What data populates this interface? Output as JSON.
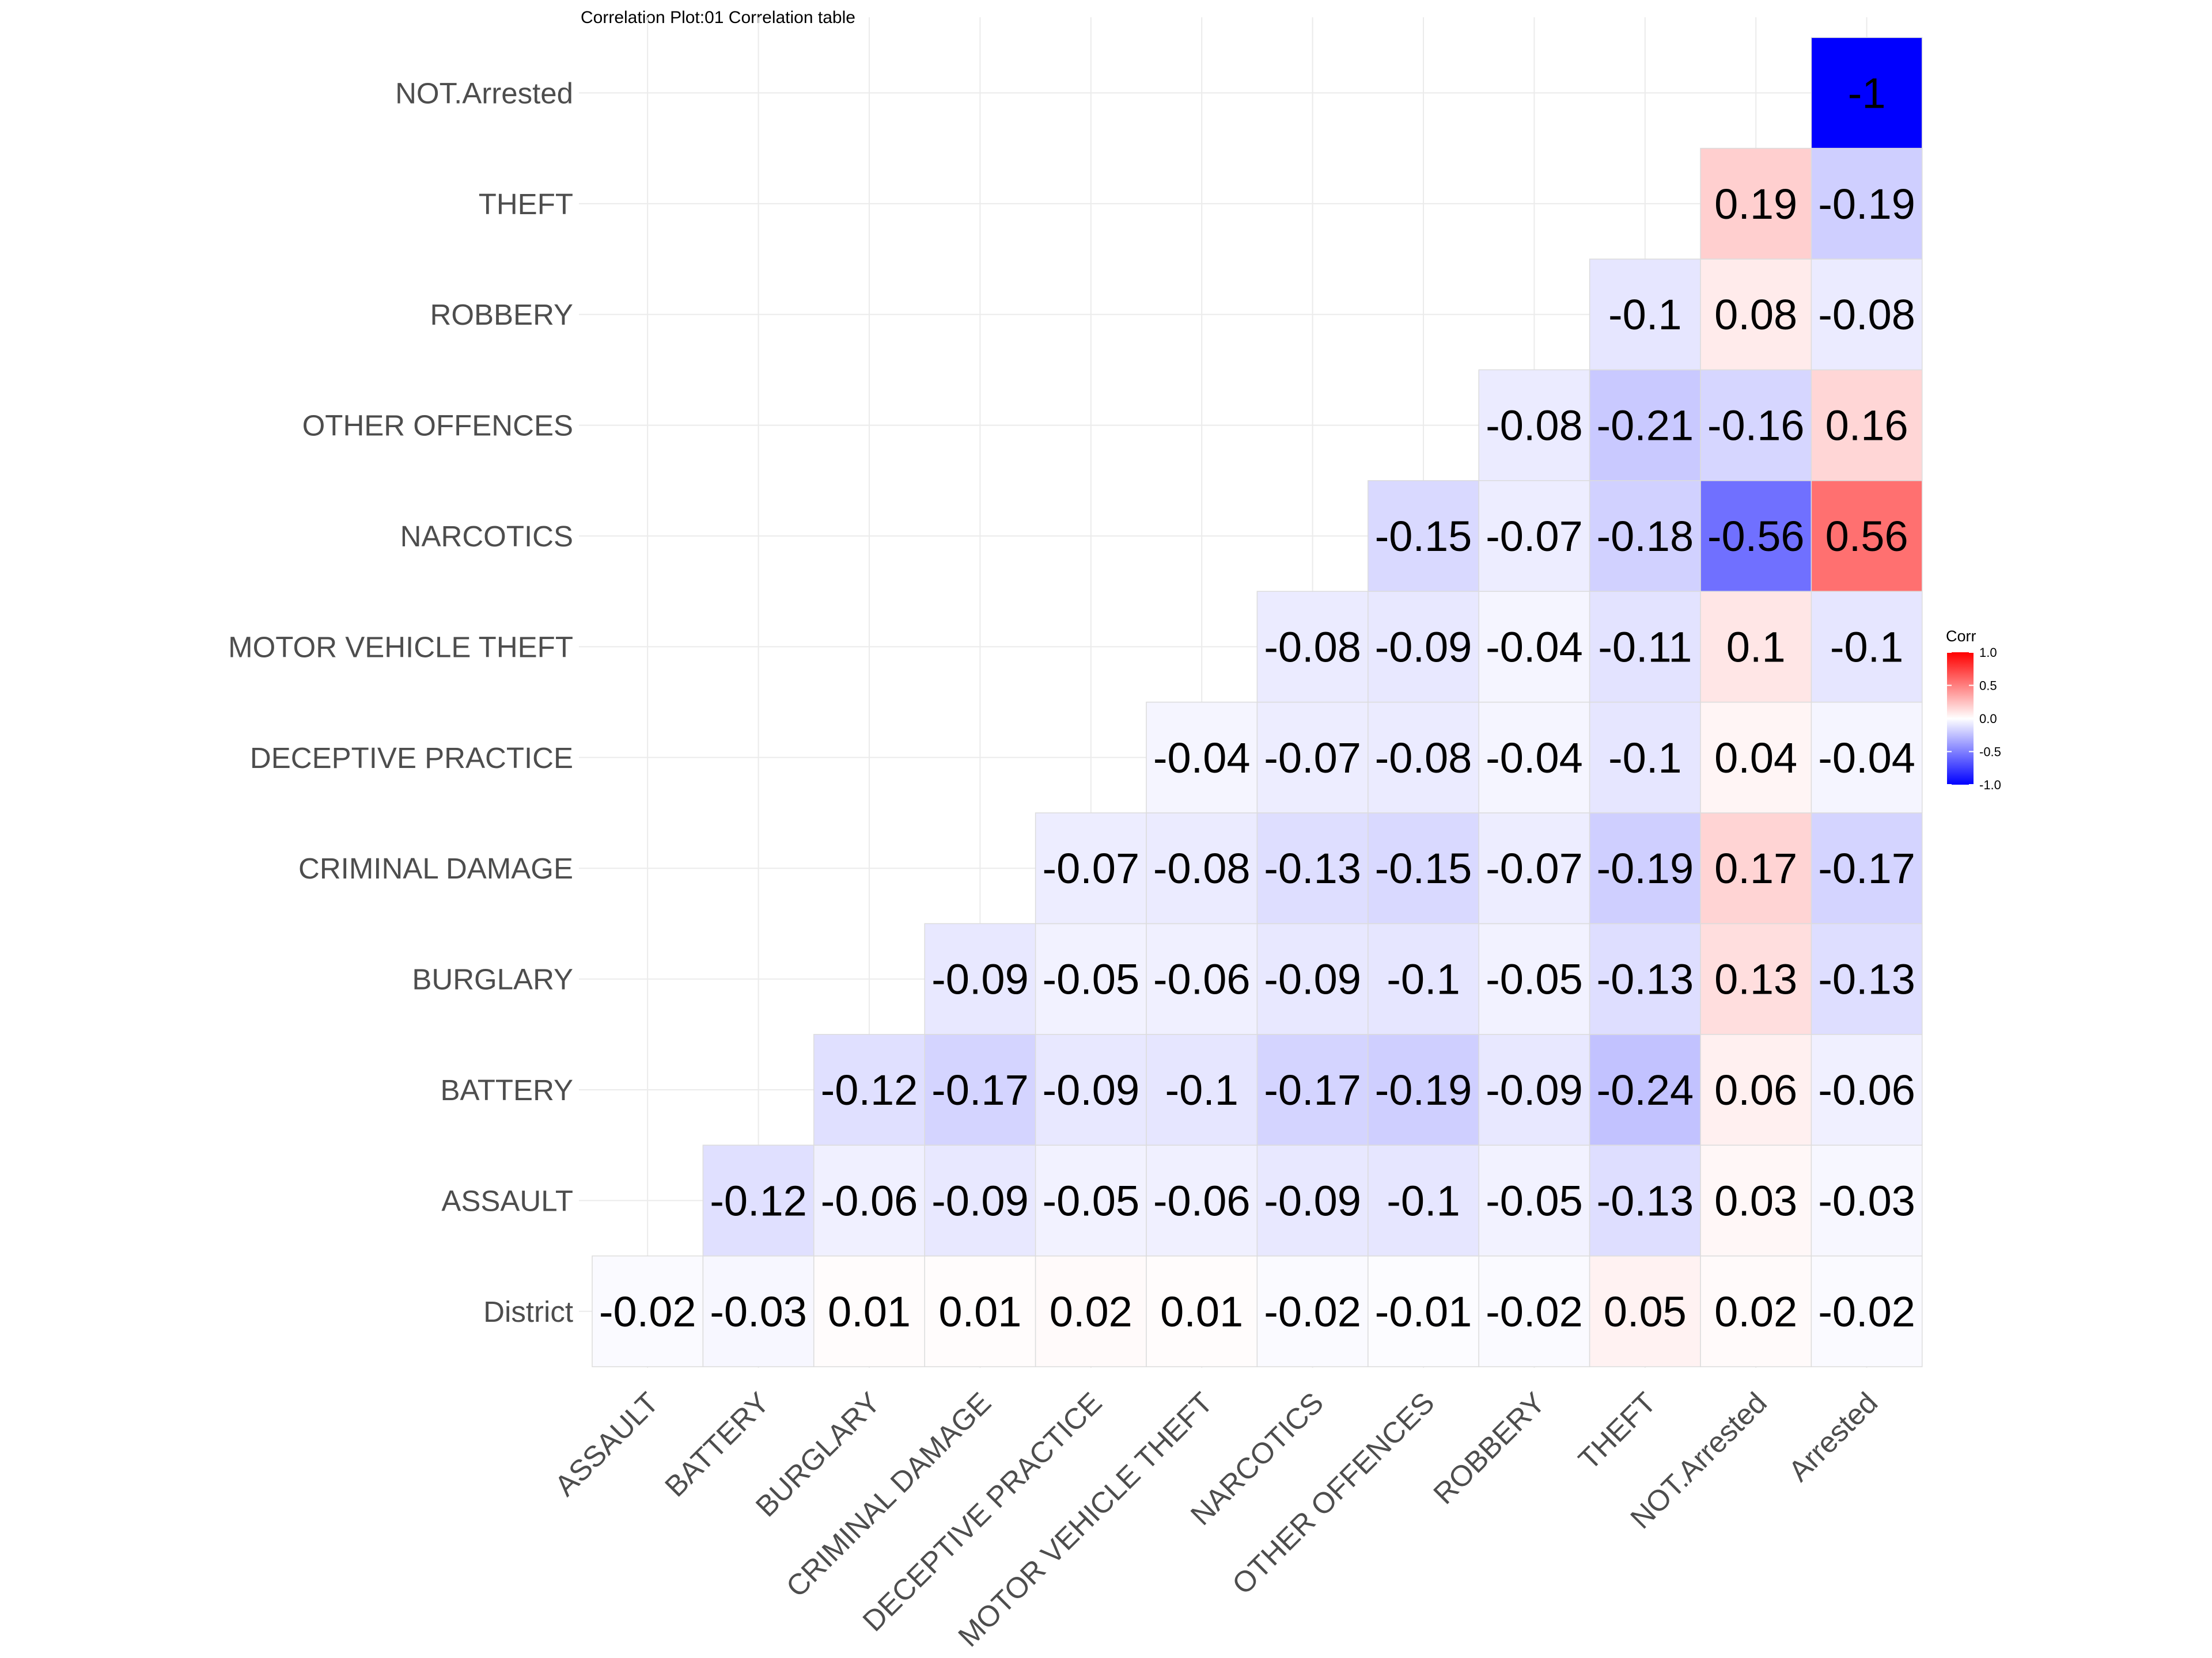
{
  "chart_data": {
    "type": "heatmap",
    "title": "Correlation Plot:01 Correlation table",
    "x_categories": [
      "ASSAULT",
      "BATTERY",
      "BURGLARY",
      "CRIMINAL DAMAGE",
      "DECEPTIVE PRACTICE",
      "MOTOR VEHICLE THEFT",
      "NARCOTICS",
      "OTHER OFFENCES",
      "ROBBERY",
      "THEFT",
      "NOT.Arrested",
      "Arrested"
    ],
    "y_categories": [
      "District",
      "ASSAULT",
      "BATTERY",
      "BURGLARY",
      "CRIMINAL DAMAGE",
      "DECEPTIVE PRACTICE",
      "MOTOR VEHICLE THEFT",
      "NARCOTICS",
      "OTHER OFFENCES",
      "ROBBERY",
      "THEFT",
      "NOT.Arrested"
    ],
    "cells": [
      {
        "x": "ASSAULT",
        "y": "District",
        "value": -0.02,
        "label": "-0.02"
      },
      {
        "x": "BATTERY",
        "y": "District",
        "value": -0.03,
        "label": "-0.03"
      },
      {
        "x": "BURGLARY",
        "y": "District",
        "value": 0.01,
        "label": "0.01"
      },
      {
        "x": "CRIMINAL DAMAGE",
        "y": "District",
        "value": 0.01,
        "label": "0.01"
      },
      {
        "x": "DECEPTIVE PRACTICE",
        "y": "District",
        "value": 0.02,
        "label": "0.02"
      },
      {
        "x": "MOTOR VEHICLE THEFT",
        "y": "District",
        "value": 0.01,
        "label": "0.01"
      },
      {
        "x": "NARCOTICS",
        "y": "District",
        "value": -0.02,
        "label": "-0.02"
      },
      {
        "x": "OTHER OFFENCES",
        "y": "District",
        "value": -0.01,
        "label": "-0.01"
      },
      {
        "x": "ROBBERY",
        "y": "District",
        "value": -0.02,
        "label": "-0.02"
      },
      {
        "x": "THEFT",
        "y": "District",
        "value": 0.05,
        "label": "0.05"
      },
      {
        "x": "NOT.Arrested",
        "y": "District",
        "value": 0.02,
        "label": "0.02"
      },
      {
        "x": "Arrested",
        "y": "District",
        "value": -0.02,
        "label": "-0.02"
      },
      {
        "x": "BATTERY",
        "y": "ASSAULT",
        "value": -0.12,
        "label": "-0.12"
      },
      {
        "x": "BURGLARY",
        "y": "ASSAULT",
        "value": -0.06,
        "label": "-0.06"
      },
      {
        "x": "CRIMINAL DAMAGE",
        "y": "ASSAULT",
        "value": -0.09,
        "label": "-0.09"
      },
      {
        "x": "DECEPTIVE PRACTICE",
        "y": "ASSAULT",
        "value": -0.05,
        "label": "-0.05"
      },
      {
        "x": "MOTOR VEHICLE THEFT",
        "y": "ASSAULT",
        "value": -0.06,
        "label": "-0.06"
      },
      {
        "x": "NARCOTICS",
        "y": "ASSAULT",
        "value": -0.09,
        "label": "-0.09"
      },
      {
        "x": "OTHER OFFENCES",
        "y": "ASSAULT",
        "value": -0.1,
        "label": "-0.1"
      },
      {
        "x": "ROBBERY",
        "y": "ASSAULT",
        "value": -0.05,
        "label": "-0.05"
      },
      {
        "x": "THEFT",
        "y": "ASSAULT",
        "value": -0.13,
        "label": "-0.13"
      },
      {
        "x": "NOT.Arrested",
        "y": "ASSAULT",
        "value": 0.03,
        "label": "0.03"
      },
      {
        "x": "Arrested",
        "y": "ASSAULT",
        "value": -0.03,
        "label": "-0.03"
      },
      {
        "x": "BURGLARY",
        "y": "BATTERY",
        "value": -0.12,
        "label": "-0.12"
      },
      {
        "x": "CRIMINAL DAMAGE",
        "y": "BATTERY",
        "value": -0.17,
        "label": "-0.17"
      },
      {
        "x": "DECEPTIVE PRACTICE",
        "y": "BATTERY",
        "value": -0.09,
        "label": "-0.09"
      },
      {
        "x": "MOTOR VEHICLE THEFT",
        "y": "BATTERY",
        "value": -0.1,
        "label": "-0.1"
      },
      {
        "x": "NARCOTICS",
        "y": "BATTERY",
        "value": -0.17,
        "label": "-0.17"
      },
      {
        "x": "OTHER OFFENCES",
        "y": "BATTERY",
        "value": -0.19,
        "label": "-0.19"
      },
      {
        "x": "ROBBERY",
        "y": "BATTERY",
        "value": -0.09,
        "label": "-0.09"
      },
      {
        "x": "THEFT",
        "y": "BATTERY",
        "value": -0.24,
        "label": "-0.24"
      },
      {
        "x": "NOT.Arrested",
        "y": "BATTERY",
        "value": 0.06,
        "label": "0.06"
      },
      {
        "x": "Arrested",
        "y": "BATTERY",
        "value": -0.06,
        "label": "-0.06"
      },
      {
        "x": "CRIMINAL DAMAGE",
        "y": "BURGLARY",
        "value": -0.09,
        "label": "-0.09"
      },
      {
        "x": "DECEPTIVE PRACTICE",
        "y": "BURGLARY",
        "value": -0.05,
        "label": "-0.05"
      },
      {
        "x": "MOTOR VEHICLE THEFT",
        "y": "BURGLARY",
        "value": -0.06,
        "label": "-0.06"
      },
      {
        "x": "NARCOTICS",
        "y": "BURGLARY",
        "value": -0.09,
        "label": "-0.09"
      },
      {
        "x": "OTHER OFFENCES",
        "y": "BURGLARY",
        "value": -0.1,
        "label": "-0.1"
      },
      {
        "x": "ROBBERY",
        "y": "BURGLARY",
        "value": -0.05,
        "label": "-0.05"
      },
      {
        "x": "THEFT",
        "y": "BURGLARY",
        "value": -0.13,
        "label": "-0.13"
      },
      {
        "x": "NOT.Arrested",
        "y": "BURGLARY",
        "value": 0.13,
        "label": "0.13"
      },
      {
        "x": "Arrested",
        "y": "BURGLARY",
        "value": -0.13,
        "label": "-0.13"
      },
      {
        "x": "DECEPTIVE PRACTICE",
        "y": "CRIMINAL DAMAGE",
        "value": -0.07,
        "label": "-0.07"
      },
      {
        "x": "MOTOR VEHICLE THEFT",
        "y": "CRIMINAL DAMAGE",
        "value": -0.08,
        "label": "-0.08"
      },
      {
        "x": "NARCOTICS",
        "y": "CRIMINAL DAMAGE",
        "value": -0.13,
        "label": "-0.13"
      },
      {
        "x": "OTHER OFFENCES",
        "y": "CRIMINAL DAMAGE",
        "value": -0.15,
        "label": "-0.15"
      },
      {
        "x": "ROBBERY",
        "y": "CRIMINAL DAMAGE",
        "value": -0.07,
        "label": "-0.07"
      },
      {
        "x": "THEFT",
        "y": "CRIMINAL DAMAGE",
        "value": -0.19,
        "label": "-0.19"
      },
      {
        "x": "NOT.Arrested",
        "y": "CRIMINAL DAMAGE",
        "value": 0.17,
        "label": "0.17"
      },
      {
        "x": "Arrested",
        "y": "CRIMINAL DAMAGE",
        "value": -0.17,
        "label": "-0.17"
      },
      {
        "x": "MOTOR VEHICLE THEFT",
        "y": "DECEPTIVE PRACTICE",
        "value": -0.04,
        "label": "-0.04"
      },
      {
        "x": "NARCOTICS",
        "y": "DECEPTIVE PRACTICE",
        "value": -0.07,
        "label": "-0.07"
      },
      {
        "x": "OTHER OFFENCES",
        "y": "DECEPTIVE PRACTICE",
        "value": -0.08,
        "label": "-0.08"
      },
      {
        "x": "ROBBERY",
        "y": "DECEPTIVE PRACTICE",
        "value": -0.04,
        "label": "-0.04"
      },
      {
        "x": "THEFT",
        "y": "DECEPTIVE PRACTICE",
        "value": -0.1,
        "label": "-0.1"
      },
      {
        "x": "NOT.Arrested",
        "y": "DECEPTIVE PRACTICE",
        "value": 0.04,
        "label": "0.04"
      },
      {
        "x": "Arrested",
        "y": "DECEPTIVE PRACTICE",
        "value": -0.04,
        "label": "-0.04"
      },
      {
        "x": "NARCOTICS",
        "y": "MOTOR VEHICLE THEFT",
        "value": -0.08,
        "label": "-0.08"
      },
      {
        "x": "OTHER OFFENCES",
        "y": "MOTOR VEHICLE THEFT",
        "value": -0.09,
        "label": "-0.09"
      },
      {
        "x": "ROBBERY",
        "y": "MOTOR VEHICLE THEFT",
        "value": -0.04,
        "label": "-0.04"
      },
      {
        "x": "THEFT",
        "y": "MOTOR VEHICLE THEFT",
        "value": -0.11,
        "label": "-0.11"
      },
      {
        "x": "NOT.Arrested",
        "y": "MOTOR VEHICLE THEFT",
        "value": 0.1,
        "label": "0.1"
      },
      {
        "x": "Arrested",
        "y": "MOTOR VEHICLE THEFT",
        "value": -0.1,
        "label": "-0.1"
      },
      {
        "x": "OTHER OFFENCES",
        "y": "NARCOTICS",
        "value": -0.15,
        "label": "-0.15"
      },
      {
        "x": "ROBBERY",
        "y": "NARCOTICS",
        "value": -0.07,
        "label": "-0.07"
      },
      {
        "x": "THEFT",
        "y": "NARCOTICS",
        "value": -0.18,
        "label": "-0.18"
      },
      {
        "x": "NOT.Arrested",
        "y": "NARCOTICS",
        "value": -0.56,
        "label": "-0.56"
      },
      {
        "x": "Arrested",
        "y": "NARCOTICS",
        "value": 0.56,
        "label": "0.56"
      },
      {
        "x": "ROBBERY",
        "y": "OTHER OFFENCES",
        "value": -0.08,
        "label": "-0.08"
      },
      {
        "x": "THEFT",
        "y": "OTHER OFFENCES",
        "value": -0.21,
        "label": "-0.21"
      },
      {
        "x": "NOT.Arrested",
        "y": "OTHER OFFENCES",
        "value": -0.16,
        "label": "-0.16"
      },
      {
        "x": "Arrested",
        "y": "OTHER OFFENCES",
        "value": 0.16,
        "label": "0.16"
      },
      {
        "x": "THEFT",
        "y": "ROBBERY",
        "value": -0.1,
        "label": "-0.1"
      },
      {
        "x": "NOT.Arrested",
        "y": "ROBBERY",
        "value": 0.08,
        "label": "0.08"
      },
      {
        "x": "Arrested",
        "y": "ROBBERY",
        "value": -0.08,
        "label": "-0.08"
      },
      {
        "x": "NOT.Arrested",
        "y": "THEFT",
        "value": 0.19,
        "label": "0.19"
      },
      {
        "x": "Arrested",
        "y": "THEFT",
        "value": -0.19,
        "label": "-0.19"
      },
      {
        "x": "Arrested",
        "y": "NOT.Arrested",
        "value": -1,
        "label": "-1"
      }
    ],
    "legend": {
      "title": "Corr",
      "ticks": [
        "1.0",
        "0.5",
        "0.0",
        "-0.5",
        "-1.0"
      ],
      "range": [
        -1,
        1
      ],
      "placement": "right"
    },
    "colors": {
      "low": "#0000ff",
      "mid": "#ffffff",
      "high": "#ff0000"
    },
    "xlabel": "",
    "ylabel": ""
  }
}
